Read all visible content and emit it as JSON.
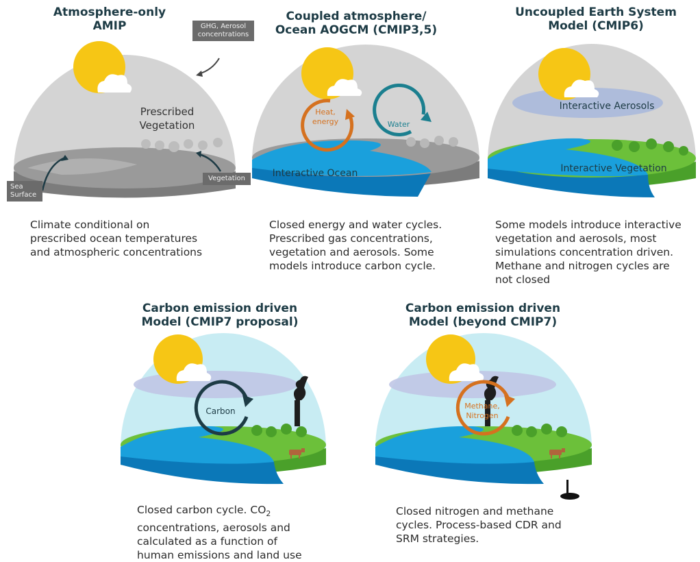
{
  "panels": [
    {
      "title": [
        "Atmosphere-only",
        "AMIP"
      ],
      "labels": {
        "veg": [
          "Prescribed",
          "Vegetation"
        ],
        "ghg": [
          "GHG, Aerosol",
          "concentrations"
        ],
        "sst": [
          "Sea",
          "Surface"
        ],
        "vegtag": "Vegetation"
      },
      "caption": [
        "Climate conditional on",
        "prescribed ocean temperatures",
        "and atmospheric concentrations"
      ]
    },
    {
      "title": [
        "Coupled atmosphere/",
        "Ocean AOGCM (CMIP3,5)"
      ],
      "labels": {
        "heat": [
          "Heat,",
          "energy"
        ],
        "water": "Water",
        "ocean": "Interactive Ocean"
      },
      "caption": [
        "Closed energy and water cycles.",
        "Prescribed gas concentrations,",
        "vegetation and aerosols.  Some",
        "models introduce carbon cycle."
      ]
    },
    {
      "title": [
        "Uncoupled Earth System",
        "Model (CMIP6)"
      ],
      "labels": {
        "aerosols": "Interactive Aerosols",
        "veg": "Interactive Vegetation"
      },
      "caption": [
        "Some models introduce interactive",
        "vegetation and aerosols, most",
        "simulations concentration driven.",
        "Methane and nitrogen cycles are",
        "not closed"
      ]
    },
    {
      "title": [
        "Carbon emission driven",
        "Model (CMIP7 proposal)"
      ],
      "labels": {
        "carbon": "Carbon"
      },
      "caption_pre": "Closed carbon cycle.  CO",
      "caption_sub": "2",
      "caption": [
        "concentrations, aerosols and",
        "calculated as a function of",
        "human emissions and land use"
      ]
    },
    {
      "title": [
        "Carbon emission driven",
        "Model (beyond CMIP7)"
      ],
      "labels": {
        "cycle": [
          "Methane,",
          "Nitrogen"
        ]
      },
      "caption": [
        "Closed nitrogen and methane",
        "cycles.  Process-based CDR and",
        "SRM strategies."
      ]
    }
  ],
  "colors": {
    "sun": "#f6c615",
    "dome_gray": "#d4d4d4",
    "dome_blue": "#c8ecf3",
    "ocean": "#1aa0dc",
    "land": "#6cc03a",
    "gray_ground": "#8a8a8a",
    "heat_arrow": "#d5711f",
    "water_arrow": "#1b7f8f",
    "carbon_arrow": "#1d3b45"
  }
}
